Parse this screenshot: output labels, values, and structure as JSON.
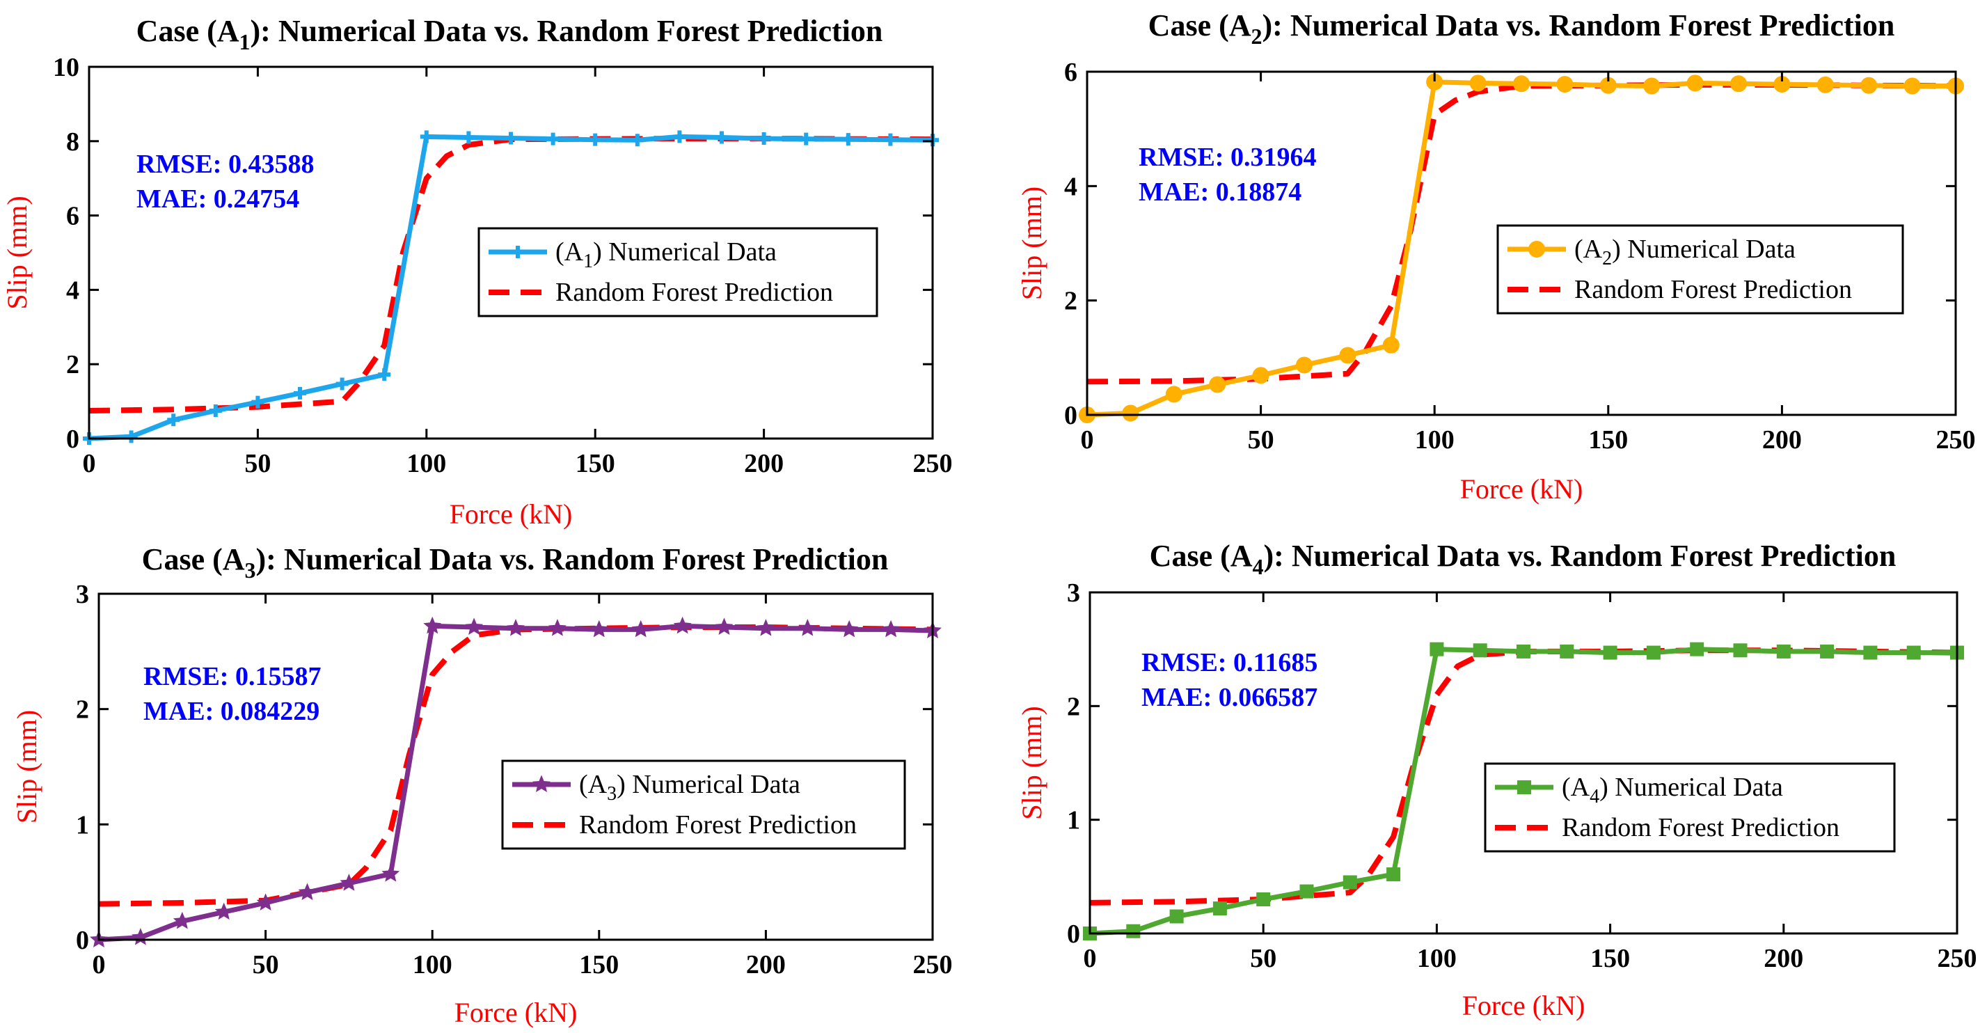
{
  "chart_data": [
    {
      "type": "line",
      "title_prefix": "Case (A",
      "title_sub": "1",
      "title_suffix": "): Numerical Data vs. Random Forest Prediction",
      "xlabel": "Force (kN)",
      "ylabel": "Slip (mm)",
      "xlim": [
        0,
        250
      ],
      "ylim": [
        0,
        10
      ],
      "xticks": [
        0,
        50,
        100,
        150,
        200,
        250
      ],
      "yticks": [
        0,
        2,
        4,
        6,
        8,
        10
      ],
      "metrics": {
        "rmse": "RMSE: 0.43588",
        "mae": "MAE: 0.24754"
      },
      "legend": {
        "position": "center-right",
        "numerical_prefix": "(A",
        "numerical_sub": "1",
        "numerical_suffix": ") Numerical Data",
        "prediction": "Random Forest Prediction"
      },
      "colors": {
        "numerical": "#1ea6ec",
        "prediction": "#ff0000"
      },
      "marker": "plus",
      "x": [
        0,
        12.5,
        25,
        37.5,
        50,
        62.5,
        75,
        87.5,
        100,
        112.5,
        125,
        137.5,
        150,
        162.5,
        175,
        187.5,
        200,
        212.5,
        225,
        237.5,
        250
      ],
      "series": [
        {
          "name": "Numerical Data",
          "values": [
            0.0,
            0.05,
            0.5,
            0.75,
            0.98,
            1.22,
            1.47,
            1.72,
            8.12,
            8.1,
            8.08,
            8.06,
            8.04,
            8.03,
            8.12,
            8.1,
            8.07,
            8.06,
            8.05,
            8.04,
            8.03
          ]
        },
        {
          "name": "Random Forest Prediction",
          "x": [
            0,
            25,
            50,
            75,
            80,
            87.5,
            93,
            100,
            106,
            112.5,
            125,
            150,
            175,
            200,
            225,
            250
          ],
          "values": [
            0.75,
            0.78,
            0.85,
            1.0,
            1.5,
            2.5,
            5.0,
            7.0,
            7.6,
            7.9,
            8.05,
            8.06,
            8.07,
            8.07,
            8.06,
            8.05
          ]
        }
      ]
    },
    {
      "type": "line",
      "title_prefix": "Case (A",
      "title_sub": "2",
      "title_suffix": "): Numerical Data vs. Random Forest Prediction",
      "xlabel": "Force (kN)",
      "ylabel": "Slip (mm)",
      "xlim": [
        0,
        250
      ],
      "ylim": [
        0,
        6
      ],
      "xticks": [
        0,
        50,
        100,
        150,
        200,
        250
      ],
      "yticks": [
        0,
        2,
        4,
        6
      ],
      "metrics": {
        "rmse": "RMSE: 0.31964",
        "mae": "MAE: 0.18874"
      },
      "legend": {
        "position": "center-right",
        "numerical_prefix": "(A",
        "numerical_sub": "2",
        "numerical_suffix": ") Numerical Data",
        "prediction": "Random Forest Prediction"
      },
      "colors": {
        "numerical": "#ffb000",
        "prediction": "#ff0000"
      },
      "marker": "circle",
      "x": [
        0,
        12.5,
        25,
        37.5,
        50,
        62.5,
        75,
        87.5,
        100,
        112.5,
        125,
        137.5,
        150,
        162.5,
        175,
        187.5,
        200,
        212.5,
        225,
        237.5,
        250
      ],
      "series": [
        {
          "name": "Numerical Data",
          "values": [
            0.0,
            0.03,
            0.36,
            0.53,
            0.69,
            0.87,
            1.04,
            1.22,
            5.82,
            5.8,
            5.79,
            5.78,
            5.76,
            5.75,
            5.8,
            5.79,
            5.78,
            5.77,
            5.76,
            5.75,
            5.75
          ]
        },
        {
          "name": "Random Forest Prediction",
          "x": [
            0,
            25,
            50,
            75,
            80,
            87.5,
            93,
            100,
            106,
            112.5,
            125,
            150,
            175,
            200,
            225,
            250
          ],
          "values": [
            0.58,
            0.59,
            0.63,
            0.72,
            1.1,
            1.9,
            3.2,
            5.25,
            5.5,
            5.65,
            5.75,
            5.76,
            5.77,
            5.77,
            5.76,
            5.75
          ]
        }
      ]
    },
    {
      "type": "line",
      "title_prefix": "Case (A",
      "title_sub": "3",
      "title_suffix": "): Numerical Data vs. Random Forest Prediction",
      "xlabel": "Force (kN)",
      "ylabel": "Slip (mm)",
      "xlim": [
        0,
        250
      ],
      "ylim": [
        0,
        3
      ],
      "xticks": [
        0,
        50,
        100,
        150,
        200,
        250
      ],
      "yticks": [
        0,
        1,
        2,
        3
      ],
      "metrics": {
        "rmse": "RMSE: 0.15587",
        "mae": "MAE: 0.084229"
      },
      "legend": {
        "position": "center-right",
        "numerical_prefix": "(A",
        "numerical_sub": "3",
        "numerical_suffix": ") Numerical Data",
        "prediction": "Random Forest Prediction"
      },
      "colors": {
        "numerical": "#7e2f8e",
        "prediction": "#ff0000"
      },
      "marker": "star",
      "x": [
        0,
        12.5,
        25,
        37.5,
        50,
        62.5,
        75,
        87.5,
        100,
        112.5,
        125,
        137.5,
        150,
        162.5,
        175,
        187.5,
        200,
        212.5,
        225,
        237.5,
        250
      ],
      "series": [
        {
          "name": "Numerical Data",
          "values": [
            0.0,
            0.02,
            0.16,
            0.24,
            0.32,
            0.41,
            0.49,
            0.57,
            2.72,
            2.71,
            2.7,
            2.7,
            2.69,
            2.69,
            2.72,
            2.71,
            2.7,
            2.7,
            2.69,
            2.69,
            2.68
          ]
        },
        {
          "name": "Random Forest Prediction",
          "x": [
            0,
            25,
            50,
            75,
            80,
            87.5,
            93,
            100,
            106,
            112.5,
            125,
            150,
            175,
            200,
            225,
            250
          ],
          "values": [
            0.31,
            0.32,
            0.34,
            0.48,
            0.62,
            0.95,
            1.6,
            2.3,
            2.5,
            2.64,
            2.69,
            2.7,
            2.71,
            2.71,
            2.7,
            2.69
          ]
        }
      ]
    },
    {
      "type": "line",
      "title_prefix": "Case (A",
      "title_sub": "4",
      "title_suffix": "): Numerical Data vs. Random Forest Prediction",
      "xlabel": "Force (kN)",
      "ylabel": "Slip (mm)",
      "xlim": [
        0,
        250
      ],
      "ylim": [
        0,
        3
      ],
      "xticks": [
        0,
        50,
        100,
        150,
        200,
        250
      ],
      "yticks": [
        0,
        1,
        2,
        3
      ],
      "metrics": {
        "rmse": "RMSE: 0.11685",
        "mae": "MAE: 0.066587"
      },
      "legend": {
        "position": "center-right",
        "numerical_prefix": "(A",
        "numerical_sub": "4",
        "numerical_suffix": ") Numerical Data",
        "prediction": "Random Forest Prediction"
      },
      "colors": {
        "numerical": "#4fa830",
        "prediction": "#ff0000"
      },
      "marker": "square",
      "x": [
        0,
        12.5,
        25,
        37.5,
        50,
        62.5,
        75,
        87.5,
        100,
        112.5,
        125,
        137.5,
        150,
        162.5,
        175,
        187.5,
        200,
        212.5,
        225,
        237.5,
        250
      ],
      "series": [
        {
          "name": "Numerical Data",
          "values": [
            0.0,
            0.02,
            0.15,
            0.22,
            0.3,
            0.37,
            0.45,
            0.52,
            2.5,
            2.49,
            2.48,
            2.48,
            2.47,
            2.47,
            2.5,
            2.49,
            2.48,
            2.48,
            2.47,
            2.47,
            2.47
          ]
        },
        {
          "name": "Random Forest Prediction",
          "x": [
            0,
            25,
            50,
            75,
            80,
            87.5,
            93,
            100,
            106,
            112.5,
            125,
            150,
            175,
            200,
            225,
            250
          ],
          "values": [
            0.27,
            0.28,
            0.3,
            0.36,
            0.5,
            0.85,
            1.45,
            2.1,
            2.35,
            2.45,
            2.48,
            2.48,
            2.49,
            2.49,
            2.48,
            2.47
          ]
        }
      ]
    }
  ]
}
